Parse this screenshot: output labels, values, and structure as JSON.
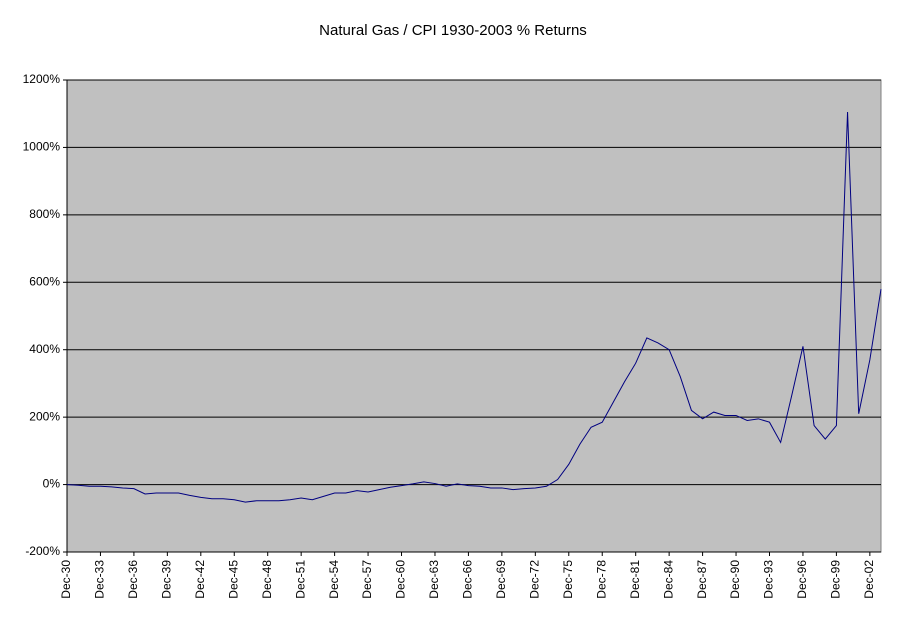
{
  "chart_data": {
    "type": "line",
    "title": "Natural Gas / CPI 1930-2003 % Returns",
    "categories": [
      "Dec-30",
      null,
      null,
      "Dec-33",
      null,
      null,
      "Dec-36",
      null,
      null,
      "Dec-39",
      null,
      null,
      "Dec-42",
      null,
      null,
      "Dec-45",
      null,
      null,
      "Dec-48",
      null,
      null,
      "Dec-51",
      null,
      null,
      "Dec-54",
      null,
      null,
      "Dec-57",
      null,
      null,
      "Dec-60",
      null,
      null,
      "Dec-63",
      null,
      null,
      "Dec-66",
      null,
      null,
      "Dec-69",
      null,
      null,
      "Dec-72",
      null,
      null,
      "Dec-75",
      null,
      null,
      "Dec-78",
      null,
      null,
      "Dec-81",
      null,
      null,
      "Dec-84",
      null,
      null,
      "Dec-87",
      null,
      null,
      "Dec-90",
      null,
      null,
      "Dec-93",
      null,
      null,
      "Dec-96",
      null,
      null,
      "Dec-99",
      null,
      null,
      "Dec-02",
      null
    ],
    "series": [
      {
        "color": "#000080",
        "values": [
          0,
          -2,
          -5,
          -5,
          -7,
          -10,
          -12,
          -28,
          -25,
          -25,
          -25,
          -32,
          -38,
          -42,
          -42,
          -45,
          -52,
          -48,
          -48,
          -48,
          -45,
          -40,
          -45,
          -35,
          -25,
          -25,
          -18,
          -22,
          -15,
          -8,
          -3,
          2,
          8,
          3,
          -5,
          2,
          -3,
          -5,
          -10,
          -10,
          -15,
          -12,
          -10,
          -5,
          15,
          60,
          120,
          170,
          185,
          245,
          305,
          360,
          435,
          420,
          400,
          320,
          220,
          195,
          215,
          205,
          205,
          190,
          195,
          185,
          125,
          265,
          410,
          175,
          135,
          175,
          1105,
          210,
          370,
          580
        ]
      }
    ],
    "ylim": [
      -200,
      1200
    ],
    "yticks": [
      {
        "value": -200,
        "label": "-200%"
      },
      {
        "value": 0,
        "label": "0%"
      },
      {
        "value": 200,
        "label": "200%"
      },
      {
        "value": 400,
        "label": "400%"
      },
      {
        "value": 600,
        "label": "600%"
      },
      {
        "value": 800,
        "label": "800%"
      },
      {
        "value": 1000,
        "label": "1000%"
      },
      {
        "value": 1200,
        "label": "1200%"
      }
    ],
    "grid": true,
    "background": "#c0c0c0"
  }
}
